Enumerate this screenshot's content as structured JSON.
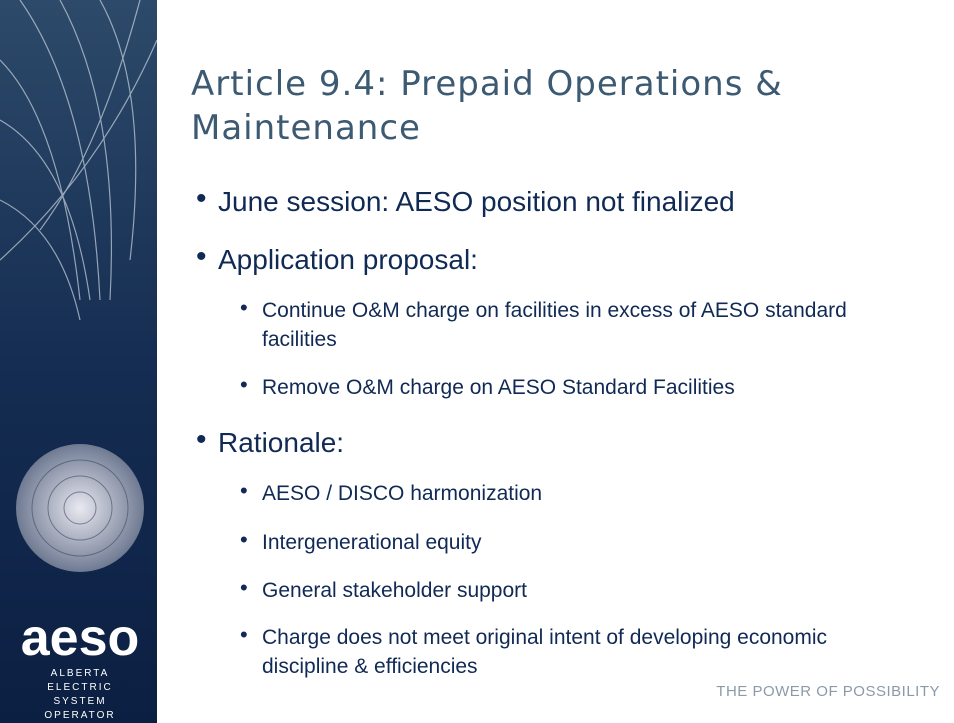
{
  "sidebar": {
    "logo": "aeso",
    "logo_lines": [
      "ALBERTA",
      "ELECTRIC",
      "SYSTEM",
      "OPERATOR"
    ]
  },
  "title": "Article 9.4: Prepaid Operations & Maintenance",
  "bullets": [
    {
      "text": "June session: AESO position not finalized",
      "sub": []
    },
    {
      "text": "Application proposal:",
      "sub": [
        "Continue O&M charge on facilities in excess of AESO standard facilities",
        "Remove O&M charge on AESO Standard Facilities"
      ]
    },
    {
      "text": "Rationale:",
      "sub": [
        "AESO / DISCO harmonization",
        "Intergenerational equity",
        "General stakeholder support",
        "Charge does not meet original intent of developing economic discipline & efficiencies"
      ]
    }
  ],
  "footer": "THE POWER OF POSSIBILITY"
}
